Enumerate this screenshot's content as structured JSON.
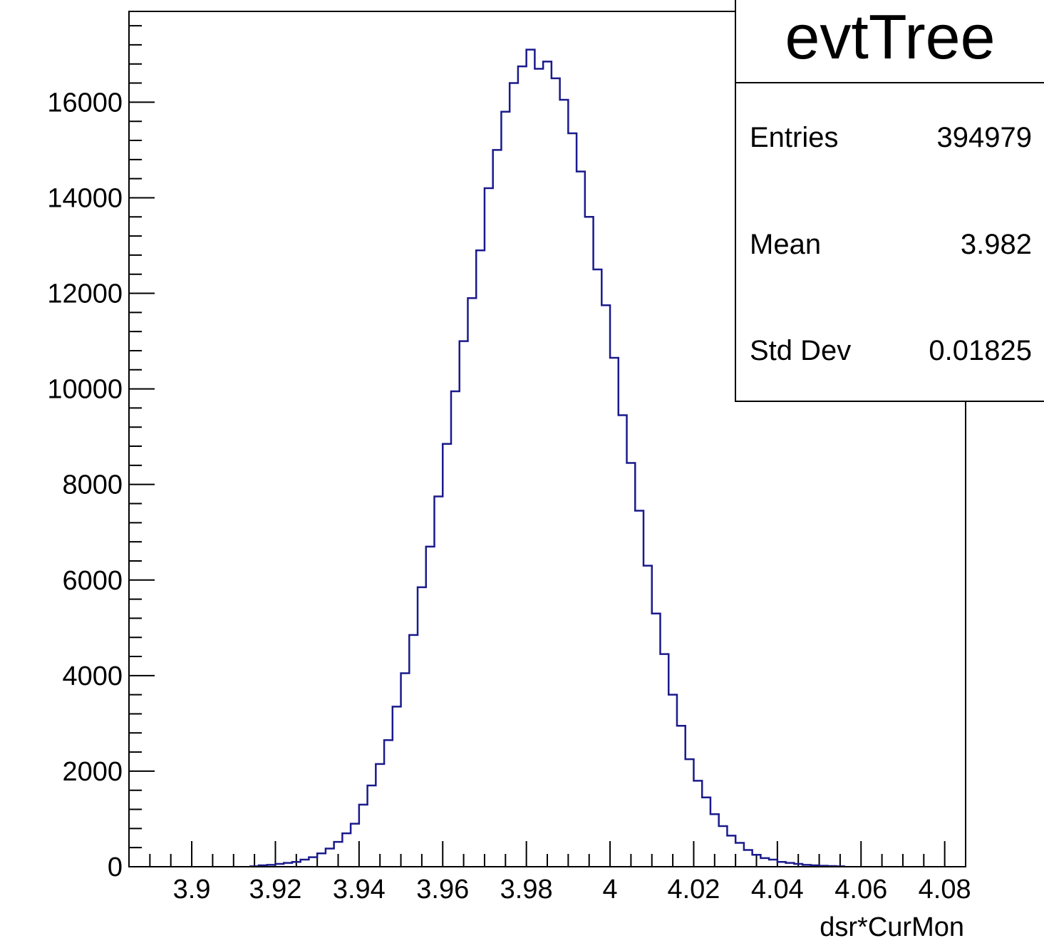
{
  "chart_data": {
    "type": "histogram",
    "title": "",
    "xlabel": "dsr*CurMon",
    "ylabel": "",
    "xlim": [
      3.885,
      4.085
    ],
    "ylim": [
      0,
      17900
    ],
    "x_ticks": [
      3.9,
      3.92,
      3.94,
      3.96,
      3.98,
      4,
      4.02,
      4.04,
      4.06,
      4.08
    ],
    "x_tick_labels": [
      "3.9",
      "3.92",
      "3.94",
      "3.96",
      "3.98",
      "4",
      "4.02",
      "4.04",
      "4.06",
      "4.08"
    ],
    "y_ticks": [
      0,
      2000,
      4000,
      6000,
      8000,
      10000,
      12000,
      14000,
      16000
    ],
    "y_tick_labels": [
      "0",
      "2000",
      "4000",
      "6000",
      "8000",
      "10000",
      "12000",
      "14000",
      "16000"
    ],
    "bin_width": 0.002,
    "bin_start": 3.914,
    "counts": [
      10,
      30,
      40,
      60,
      80,
      100,
      150,
      200,
      280,
      380,
      520,
      700,
      900,
      1300,
      1700,
      2150,
      2650,
      3350,
      4050,
      4850,
      5850,
      6700,
      7750,
      8850,
      9950,
      11000,
      11900,
      12900,
      14200,
      15000,
      15800,
      16400,
      16750,
      17100,
      16700,
      16850,
      16500,
      16050,
      15350,
      14550,
      13600,
      12500,
      11750,
      10650,
      9450,
      8450,
      7450,
      6300,
      5300,
      4450,
      3600,
      2950,
      2250,
      1800,
      1450,
      1100,
      850,
      650,
      500,
      350,
      250,
      180,
      150,
      100,
      80,
      60,
      40,
      30,
      20,
      15,
      10
    ],
    "line_color": "#1a1a8c",
    "grid": false,
    "legend_placement": "top-right"
  },
  "stats_box": {
    "title": "evtTree",
    "rows": [
      {
        "label": "Entries",
        "value": "394979"
      },
      {
        "label": "Mean",
        "value": "3.982"
      },
      {
        "label": "Std Dev",
        "value": "0.01825"
      }
    ]
  }
}
